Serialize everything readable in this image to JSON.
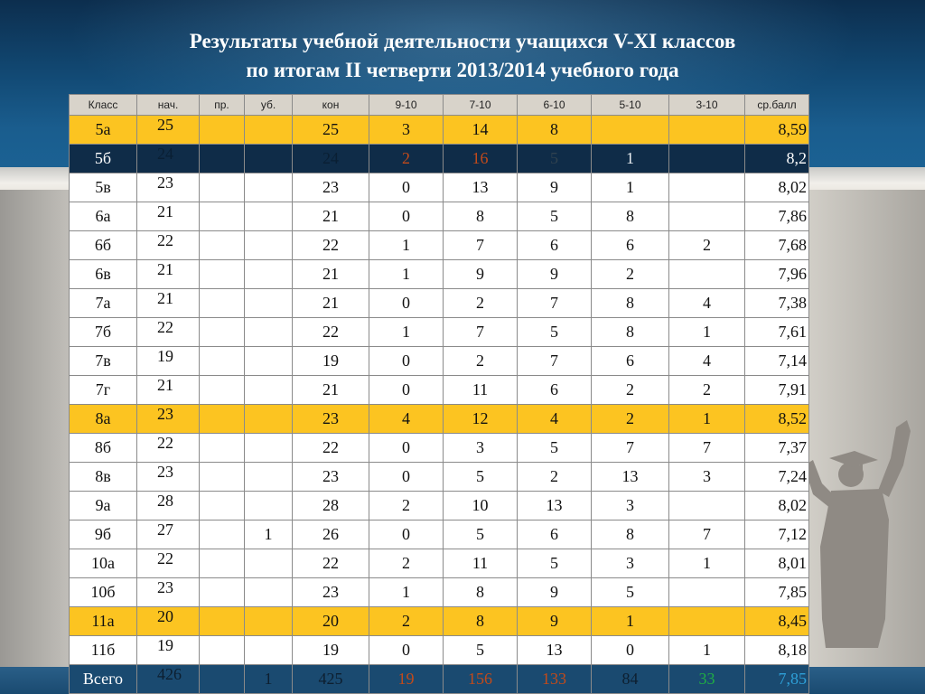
{
  "title": {
    "line1": "Результаты учебной деятельности учащихся V-XI классов",
    "line2": "по итогам II четверти 2013/2014 учебного года"
  },
  "table": {
    "headers": [
      "Класс",
      "нач.",
      "пр.",
      "уб.",
      "кон",
      "9-10",
      "7-10",
      "6-10",
      "5-10",
      "3-10",
      "ср.балл"
    ],
    "rows": [
      {
        "cls": "5а",
        "nach": "25",
        "pr": "",
        "ub": "",
        "kon": "25",
        "g9": "3",
        "g7": "14",
        "g6": "8",
        "g5": "",
        "g3": "",
        "avg": "8,59",
        "highlight": true
      },
      {
        "cls": "5б",
        "nach": "24",
        "pr": "",
        "ub": "",
        "kon": "24",
        "g9": "2",
        "g7": "16",
        "g6": "5",
        "g5": "1",
        "g3": "",
        "avg": "8,2",
        "dark": true
      },
      {
        "cls": "5в",
        "nach": "23",
        "pr": "",
        "ub": "",
        "kon": "23",
        "g9": "0",
        "g7": "13",
        "g6": "9",
        "g5": "1",
        "g3": "",
        "avg": "8,02"
      },
      {
        "cls": "6а",
        "nach": "21",
        "pr": "",
        "ub": "",
        "kon": "21",
        "g9": "0",
        "g7": "8",
        "g6": "5",
        "g5": "8",
        "g3": "",
        "avg": "7,86"
      },
      {
        "cls": "6б",
        "nach": "22",
        "pr": "",
        "ub": "",
        "kon": "22",
        "g9": "1",
        "g7": "7",
        "g6": "6",
        "g5": "6",
        "g3": "2",
        "avg": "7,68"
      },
      {
        "cls": "6в",
        "nach": "21",
        "pr": "",
        "ub": "",
        "kon": "21",
        "g9": "1",
        "g7": "9",
        "g6": "9",
        "g5": "2",
        "g3": "",
        "avg": "7,96"
      },
      {
        "cls": "7а",
        "nach": "21",
        "pr": "",
        "ub": "",
        "kon": "21",
        "g9": "0",
        "g7": "2",
        "g6": "7",
        "g5": "8",
        "g3": "4",
        "avg": "7,38"
      },
      {
        "cls": "7б",
        "nach": "22",
        "pr": "",
        "ub": "",
        "kon": "22",
        "g9": "1",
        "g7": "7",
        "g6": "5",
        "g5": "8",
        "g3": "1",
        "avg": "7,61"
      },
      {
        "cls": "7в",
        "nach": "19",
        "pr": "",
        "ub": "",
        "kon": "19",
        "g9": "0",
        "g7": "2",
        "g6": "7",
        "g5": "6",
        "g3": "4",
        "avg": "7,14"
      },
      {
        "cls": "7г",
        "nach": "21",
        "pr": "",
        "ub": "",
        "kon": "21",
        "g9": "0",
        "g7": "11",
        "g6": "6",
        "g5": "2",
        "g3": "2",
        "avg": "7,91"
      },
      {
        "cls": "8а",
        "nach": "23",
        "pr": "",
        "ub": "",
        "kon": "23",
        "g9": "4",
        "g7": "12",
        "g6": "4",
        "g5": "2",
        "g3": "1",
        "avg": "8,52",
        "highlight": true
      },
      {
        "cls": "8б",
        "nach": "22",
        "pr": "",
        "ub": "",
        "kon": "22",
        "g9": "0",
        "g7": "3",
        "g6": "5",
        "g5": "7",
        "g3": "7",
        "avg": "7,37"
      },
      {
        "cls": "8в",
        "nach": "23",
        "pr": "",
        "ub": "",
        "kon": "23",
        "g9": "0",
        "g7": "5",
        "g6": "2",
        "g5": "13",
        "g3": "3",
        "avg": "7,24"
      },
      {
        "cls": "9а",
        "nach": "28",
        "pr": "",
        "ub": "",
        "kon": "28",
        "g9": "2",
        "g7": "10",
        "g6": "13",
        "g5": "3",
        "g3": "",
        "avg": "8,02"
      },
      {
        "cls": "9б",
        "nach": "27",
        "pr": "",
        "ub": "1",
        "kon": "26",
        "g9": "0",
        "g7": "5",
        "g6": "6",
        "g5": "8",
        "g3": "7",
        "avg": "7,12"
      },
      {
        "cls": "10а",
        "nach": "22",
        "pr": "",
        "ub": "",
        "kon": "22",
        "g9": "2",
        "g7": "11",
        "g6": "5",
        "g5": "3",
        "g3": "1",
        "avg": "8,01"
      },
      {
        "cls": "10б",
        "nach": "23",
        "pr": "",
        "ub": "",
        "kon": "23",
        "g9": "1",
        "g7": "8",
        "g6": "9",
        "g5": "5",
        "g3": "",
        "avg": "7,85"
      },
      {
        "cls": "11а",
        "nach": "20",
        "pr": "",
        "ub": "",
        "kon": "20",
        "g9": "2",
        "g7": "8",
        "g6": "9",
        "g5": "1",
        "g3": "",
        "avg": "8,45",
        "highlight": true
      },
      {
        "cls": "11б",
        "nach": "19",
        "pr": "",
        "ub": "",
        "kon": "19",
        "g9": "0",
        "g7": "5",
        "g6": "13",
        "g5": "0",
        "g3": "1",
        "avg": "8,18"
      },
      {
        "cls": "Всего",
        "nach": "426",
        "pr": "",
        "ub": "1",
        "kon": "425",
        "g9": "19",
        "g7": "156",
        "g6": "133",
        "g5": "84",
        "g3": "33",
        "avg": "7,85",
        "total": true
      }
    ]
  },
  "colors": {
    "highlight_row": "#fcc421",
    "grade_9_10": "#c0392b",
    "grade_3_10": "#1b9b3e",
    "title_text": "#ffffff"
  },
  "decor": {
    "silhouette_icon": "graduate-silhouette-icon"
  }
}
